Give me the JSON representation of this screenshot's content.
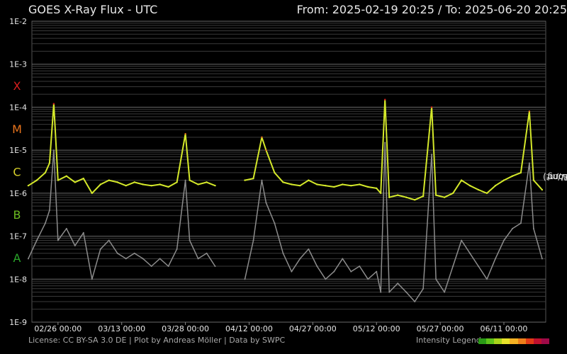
{
  "header": {
    "title": "GOES X-Ray Flux - UTC",
    "from_label": "From:",
    "from_value": "2025-02-19 20:25",
    "separator": "/",
    "to_label": "To:",
    "to_value": "2025-06-20 20:25"
  },
  "footer": {
    "license": "License: CC BY-SA 3.0 DE | Plot by Andreas Möller | Data by SWPC",
    "legend_label": "Intensity Legend",
    "legend_colors": [
      "#2a9a16",
      "#5ec21a",
      "#a9d41b",
      "#e8e22a",
      "#f6b223",
      "#ef7f1a",
      "#e23a16",
      "#c0102e",
      "#a00a48"
    ]
  },
  "colors": {
    "background": "#000000",
    "grid": "#5a5a5a",
    "long": "#d4e82a",
    "short": "#8c8c8c",
    "class_X": "#d81e1e",
    "class_M": "#e8741c",
    "class_C": "#d7d02a",
    "class_B": "#6cbc20",
    "class_A": "#2aa62a"
  },
  "chart_data": {
    "type": "line",
    "title": "GOES X-Ray Flux - UTC",
    "xlabel": "",
    "ylabel": {
      "short": "Short",
      "sep": ", ",
      "long": "Long",
      "unit": " (W/m²)"
    },
    "y_scale": "log",
    "ylim": [
      1e-09,
      0.01
    ],
    "xlim": [
      "2025-02-19 20:25",
      "2025-06-20 20:25"
    ],
    "y_ticks": [
      {
        "value": 0.01,
        "label": "1E-2"
      },
      {
        "value": 0.001,
        "label": "1E-3"
      },
      {
        "value": 0.0001,
        "label": "1E-4"
      },
      {
        "value": 1e-05,
        "label": "1E-5"
      },
      {
        "value": 1e-06,
        "label": "1E-6"
      },
      {
        "value": 1e-07,
        "label": "1E-7"
      },
      {
        "value": 1e-08,
        "label": "1E-8"
      },
      {
        "value": 1e-09,
        "label": "1E-9"
      }
    ],
    "flare_classes": [
      {
        "label": "X",
        "value": 0.000316,
        "color": "#d81e1e"
      },
      {
        "label": "M",
        "value": 3.16e-05,
        "color": "#e8741c"
      },
      {
        "label": "C",
        "value": 3.16e-06,
        "color": "#d7d02a"
      },
      {
        "label": "B",
        "value": 3.16e-07,
        "color": "#6cbc20"
      },
      {
        "label": "A",
        "value": 3.16e-08,
        "color": "#2aa62a"
      }
    ],
    "x_ticks": [
      {
        "date": "2025-02-26",
        "label": "02/26 00:00"
      },
      {
        "date": "2025-03-13",
        "label": "03/13 00:00"
      },
      {
        "date": "2025-03-28",
        "label": "03/28 00:00"
      },
      {
        "date": "2025-04-12",
        "label": "04/12 00:00"
      },
      {
        "date": "2025-04-27",
        "label": "04/27 00:00"
      },
      {
        "date": "2025-05-12",
        "label": "05/12 00:00"
      },
      {
        "date": "2025-05-27",
        "label": "05/27 00:00"
      },
      {
        "date": "2025-06-11",
        "label": "06/11 00:00"
      }
    ],
    "data_gap": [
      "2025-04-05",
      "2025-04-10"
    ],
    "series": [
      {
        "name": "Long",
        "color": "#d4e82a",
        "points": [
          [
            "2025-02-19",
            1.5e-06
          ],
          [
            "2025-02-21",
            2e-06
          ],
          [
            "2025-02-23",
            3e-06
          ],
          [
            "2025-02-24",
            5e-06
          ],
          [
            "2025-02-25",
            0.00012
          ],
          [
            "2025-02-26",
            2e-06
          ],
          [
            "2025-02-28",
            2.5e-06
          ],
          [
            "2025-03-02",
            1.8e-06
          ],
          [
            "2025-03-04",
            2.2e-06
          ],
          [
            "2025-03-06",
            1e-06
          ],
          [
            "2025-03-08",
            1.6e-06
          ],
          [
            "2025-03-10",
            2e-06
          ],
          [
            "2025-03-12",
            1.8e-06
          ],
          [
            "2025-03-14",
            1.5e-06
          ],
          [
            "2025-03-16",
            1.8e-06
          ],
          [
            "2025-03-18",
            1.6e-06
          ],
          [
            "2025-03-20",
            1.5e-06
          ],
          [
            "2025-03-22",
            1.6e-06
          ],
          [
            "2025-03-24",
            1.4e-06
          ],
          [
            "2025-03-26",
            1.8e-06
          ],
          [
            "2025-03-28",
            2.4e-05
          ],
          [
            "2025-03-29",
            2e-06
          ],
          [
            "2025-03-31",
            1.6e-06
          ],
          [
            "2025-04-02",
            1.8e-06
          ],
          [
            "2025-04-04",
            1.5e-06
          ],
          [
            "2025-04-11",
            2e-06
          ],
          [
            "2025-04-13",
            2.2e-06
          ],
          [
            "2025-04-15",
            2e-05
          ],
          [
            "2025-04-16",
            1e-05
          ],
          [
            "2025-04-18",
            3e-06
          ],
          [
            "2025-04-20",
            1.8e-06
          ],
          [
            "2025-04-22",
            1.6e-06
          ],
          [
            "2025-04-24",
            1.5e-06
          ],
          [
            "2025-04-26",
            2e-06
          ],
          [
            "2025-04-28",
            1.6e-06
          ],
          [
            "2025-04-30",
            1.5e-06
          ],
          [
            "2025-05-02",
            1.4e-06
          ],
          [
            "2025-05-04",
            1.6e-06
          ],
          [
            "2025-05-06",
            1.5e-06
          ],
          [
            "2025-05-08",
            1.6e-06
          ],
          [
            "2025-05-10",
            1.4e-06
          ],
          [
            "2025-05-12",
            1.3e-06
          ],
          [
            "2025-05-13",
            1e-06
          ],
          [
            "2025-05-14",
            0.00015
          ],
          [
            "2025-05-15",
            8e-07
          ],
          [
            "2025-05-17",
            9e-07
          ],
          [
            "2025-05-19",
            8e-07
          ],
          [
            "2025-05-21",
            7e-07
          ],
          [
            "2025-05-23",
            8.5e-07
          ],
          [
            "2025-05-25",
            0.0001
          ],
          [
            "2025-05-26",
            9e-07
          ],
          [
            "2025-05-28",
            8e-07
          ],
          [
            "2025-05-30",
            1e-06
          ],
          [
            "2025-06-01",
            2e-06
          ],
          [
            "2025-06-03",
            1.5e-06
          ],
          [
            "2025-06-05",
            1.2e-06
          ],
          [
            "2025-06-07",
            1e-06
          ],
          [
            "2025-06-09",
            1.5e-06
          ],
          [
            "2025-06-11",
            2e-06
          ],
          [
            "2025-06-13",
            2.5e-06
          ],
          [
            "2025-06-15",
            3e-06
          ],
          [
            "2025-06-17",
            8e-05
          ],
          [
            "2025-06-18",
            2e-06
          ],
          [
            "2025-06-20",
            1.2e-06
          ]
        ]
      },
      {
        "name": "Short",
        "color": "#8c8c8c",
        "points": [
          [
            "2025-02-19",
            3e-08
          ],
          [
            "2025-02-21",
            8e-08
          ],
          [
            "2025-02-23",
            2e-07
          ],
          [
            "2025-02-24",
            4e-07
          ],
          [
            "2025-02-25",
            1e-05
          ],
          [
            "2025-02-26",
            8e-08
          ],
          [
            "2025-02-28",
            1.5e-07
          ],
          [
            "2025-03-02",
            6e-08
          ],
          [
            "2025-03-04",
            1.2e-07
          ],
          [
            "2025-03-06",
            1e-08
          ],
          [
            "2025-03-08",
            5e-08
          ],
          [
            "2025-03-10",
            8e-08
          ],
          [
            "2025-03-12",
            4e-08
          ],
          [
            "2025-03-14",
            3e-08
          ],
          [
            "2025-03-16",
            4e-08
          ],
          [
            "2025-03-18",
            3e-08
          ],
          [
            "2025-03-20",
            2e-08
          ],
          [
            "2025-03-22",
            3e-08
          ],
          [
            "2025-03-24",
            2e-08
          ],
          [
            "2025-03-26",
            5e-08
          ],
          [
            "2025-03-28",
            2e-06
          ],
          [
            "2025-03-29",
            8e-08
          ],
          [
            "2025-03-31",
            3e-08
          ],
          [
            "2025-04-02",
            4e-08
          ],
          [
            "2025-04-04",
            2e-08
          ],
          [
            "2025-04-11",
            1e-08
          ],
          [
            "2025-04-13",
            8e-08
          ],
          [
            "2025-04-15",
            2e-06
          ],
          [
            "2025-04-16",
            6e-07
          ],
          [
            "2025-04-18",
            2e-07
          ],
          [
            "2025-04-20",
            4e-08
          ],
          [
            "2025-04-22",
            1.5e-08
          ],
          [
            "2025-04-24",
            3e-08
          ],
          [
            "2025-04-26",
            5e-08
          ],
          [
            "2025-04-28",
            2e-08
          ],
          [
            "2025-04-30",
            1e-08
          ],
          [
            "2025-05-02",
            1.5e-08
          ],
          [
            "2025-05-04",
            3e-08
          ],
          [
            "2025-05-06",
            1.5e-08
          ],
          [
            "2025-05-08",
            2e-08
          ],
          [
            "2025-05-10",
            1e-08
          ],
          [
            "2025-05-12",
            1.5e-08
          ],
          [
            "2025-05-13",
            5e-09
          ],
          [
            "2025-05-14",
            1.5e-05
          ],
          [
            "2025-05-15",
            5e-09
          ],
          [
            "2025-05-17",
            8e-09
          ],
          [
            "2025-05-19",
            5e-09
          ],
          [
            "2025-05-21",
            3e-09
          ],
          [
            "2025-05-23",
            6e-09
          ],
          [
            "2025-05-25",
            8e-06
          ],
          [
            "2025-05-26",
            1e-08
          ],
          [
            "2025-05-28",
            5e-09
          ],
          [
            "2025-05-30",
            2e-08
          ],
          [
            "2025-06-01",
            8e-08
          ],
          [
            "2025-06-03",
            4e-08
          ],
          [
            "2025-06-05",
            2e-08
          ],
          [
            "2025-06-07",
            1e-08
          ],
          [
            "2025-06-09",
            3e-08
          ],
          [
            "2025-06-11",
            8e-08
          ],
          [
            "2025-06-13",
            1.5e-07
          ],
          [
            "2025-06-15",
            2e-07
          ],
          [
            "2025-06-17",
            5e-06
          ],
          [
            "2025-06-18",
            1.5e-07
          ],
          [
            "2025-06-20",
            3e-08
          ]
        ]
      }
    ]
  }
}
